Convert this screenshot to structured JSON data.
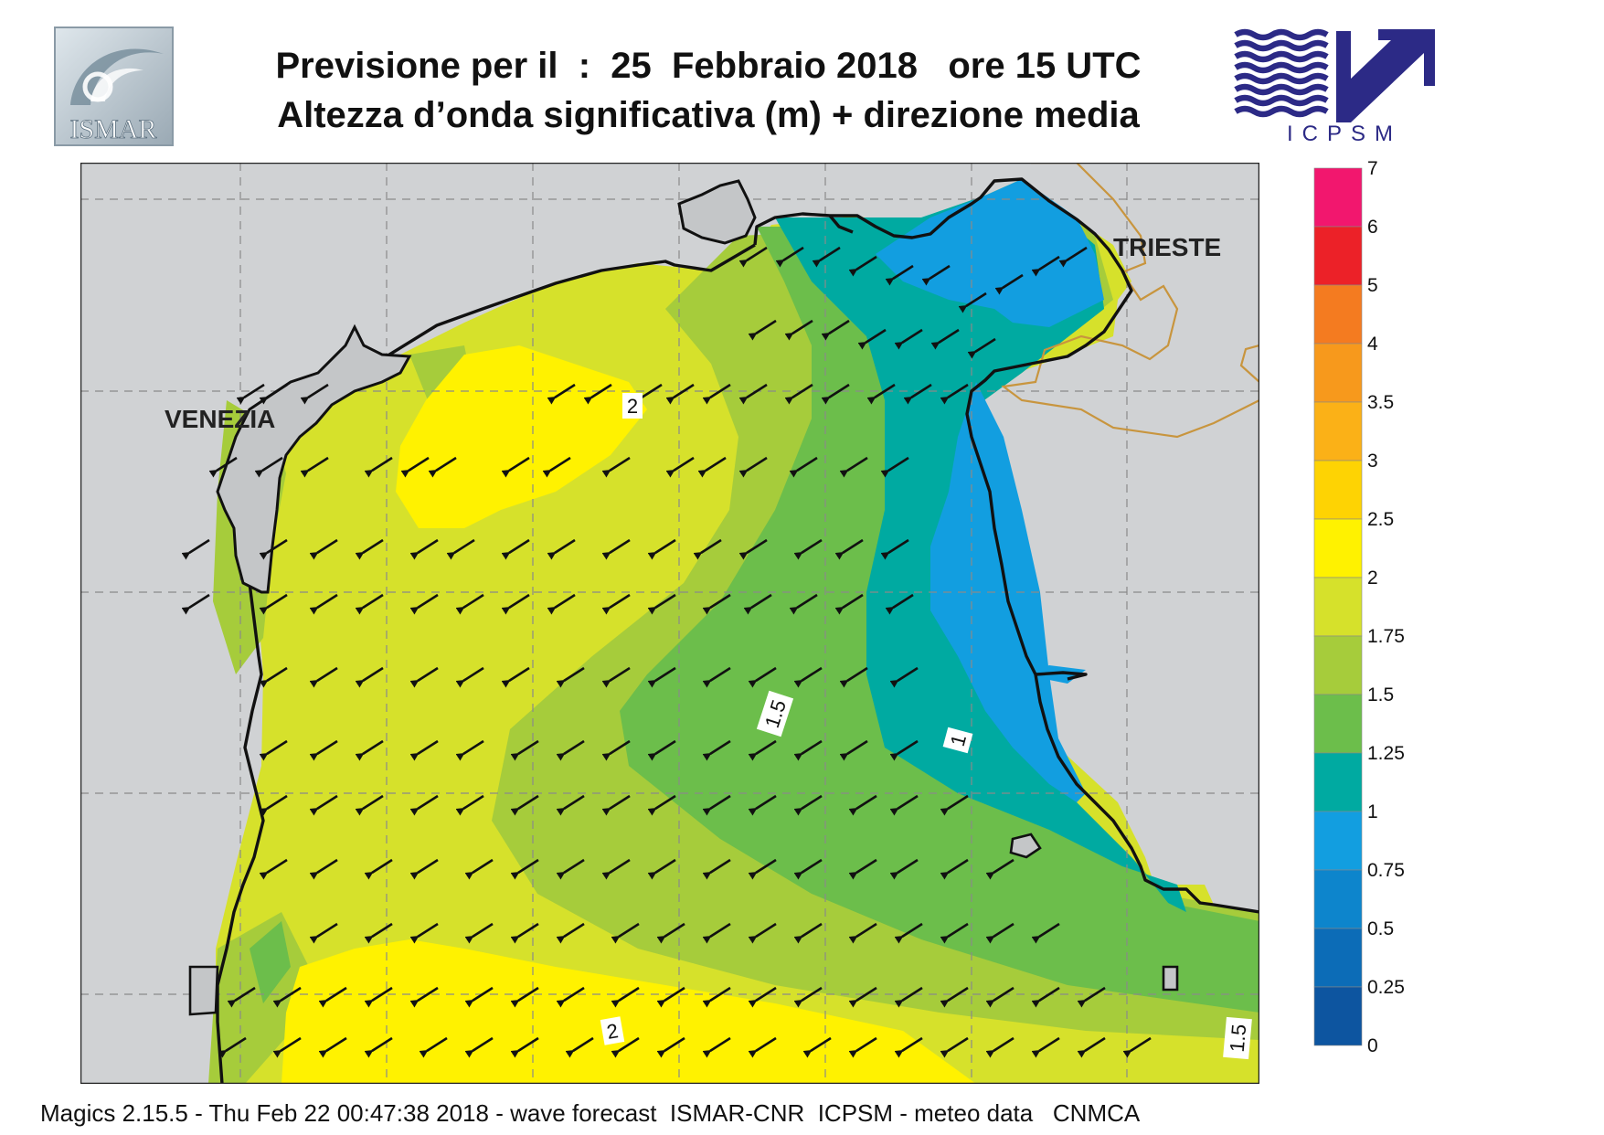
{
  "header": {
    "title_line1": "Previsione per il  :  25  Febbraio 2018   ore 15 UTC",
    "title_line2": "Altezza d’onda significativa (m) + direzione media",
    "left_logo_text": "ISMAR",
    "right_logo_text": "ICPSM"
  },
  "map": {
    "city_labels": {
      "venezia": "VENEZIA",
      "trieste": "TRIESTE"
    },
    "contour_labels": [
      "2",
      "1.5",
      "1",
      "2",
      "1.5"
    ],
    "arrow_direction": "south-west",
    "land_color": "#d0d2d4",
    "coast_color": "#111111",
    "border_color": "#c8953e"
  },
  "legend": {
    "labels": [
      "7",
      "6",
      "5",
      "4",
      "3.5",
      "3",
      "2.5",
      "2",
      "1.75",
      "1.5",
      "1.25",
      "1",
      "0.75",
      "0.5",
      "0.25",
      "0"
    ],
    "colors": [
      "#f2176e",
      "#ec2128",
      "#f47b20",
      "#f7991c",
      "#fbb117",
      "#fed303",
      "#fff200",
      "#d6e12b",
      "#a6cc3b",
      "#6cbe4b",
      "#00aaa1",
      "#129ee0",
      "#0d85cc",
      "#0c6cb7",
      "#0d55a0"
    ]
  },
  "footer": {
    "text": "Magics 2.15.5 - Thu Feb 22 00:47:38 2018 - wave forecast  ISMAR-CNR  ICPSM - meteo data   CNMCA"
  }
}
